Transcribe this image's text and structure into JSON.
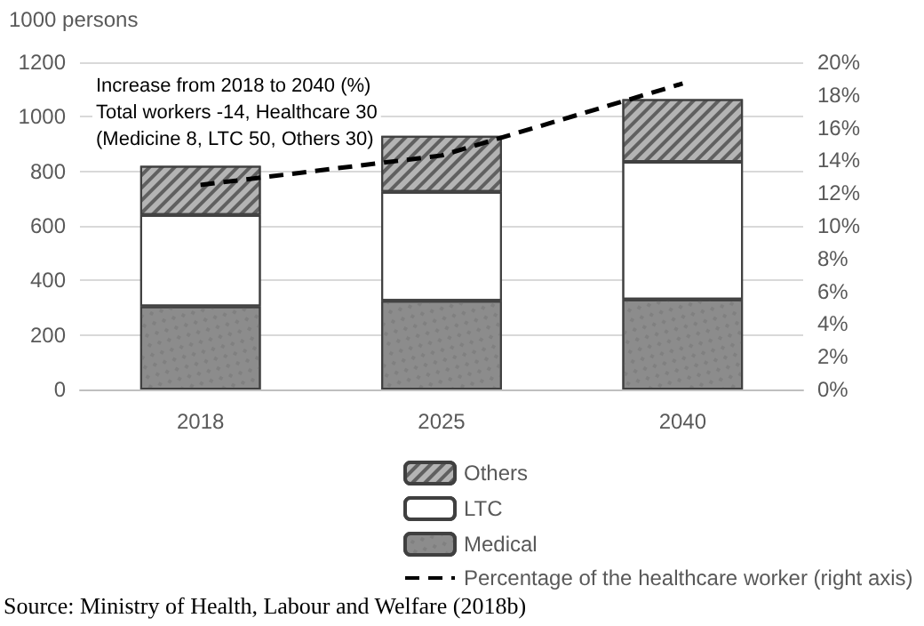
{
  "chart_data": {
    "type": "bar",
    "stacked": true,
    "ylabel": "1000 persons",
    "categories": [
      "2018",
      "2025",
      "2040"
    ],
    "series": [
      {
        "name": "Medical",
        "color": "#8c8c8c",
        "values": [
          305,
          325,
          330
        ]
      },
      {
        "name": "LTC",
        "color": "#ffffff",
        "values": [
          335,
          400,
          505
        ]
      },
      {
        "name": "Others",
        "color": "#b4b4b4",
        "values": [
          180,
          205,
          230
        ]
      },
      {
        "name": "Percentage of the healthcare worker (right axis)",
        "type": "line",
        "axis": "y2",
        "color": "#000000",
        "line_style": "dashed",
        "marker": "none",
        "values": [
          12.5,
          14.3,
          18.7
        ]
      }
    ],
    "ylim": [
      0,
      1200
    ],
    "yticks": [
      0,
      200,
      400,
      600,
      800,
      1000,
      1200
    ],
    "y2lim": [
      0,
      20
    ],
    "y2ticks": [
      {
        "value": 0,
        "label": "0%"
      },
      {
        "value": 2,
        "label": "2%"
      },
      {
        "value": 4,
        "label": "4%"
      },
      {
        "value": 6,
        "label": "6%"
      },
      {
        "value": 8,
        "label": "8%"
      },
      {
        "value": 10,
        "label": "10%"
      },
      {
        "value": 12,
        "label": "12%"
      },
      {
        "value": 14,
        "label": "14%"
      },
      {
        "value": 16,
        "label": "16%"
      },
      {
        "value": 18,
        "label": "18%"
      },
      {
        "value": 20,
        "label": "20%"
      }
    ],
    "grid": "y",
    "legend": "bottom",
    "annotations": [
      "Increase from 2018 to 2040 (%)",
      "Total workers -14, Healthcare 30",
      "(Medicine 8, LTC 50, Others 30)",
      "Source: Ministry of Health, Labour and Welfare (2018b)"
    ]
  }
}
